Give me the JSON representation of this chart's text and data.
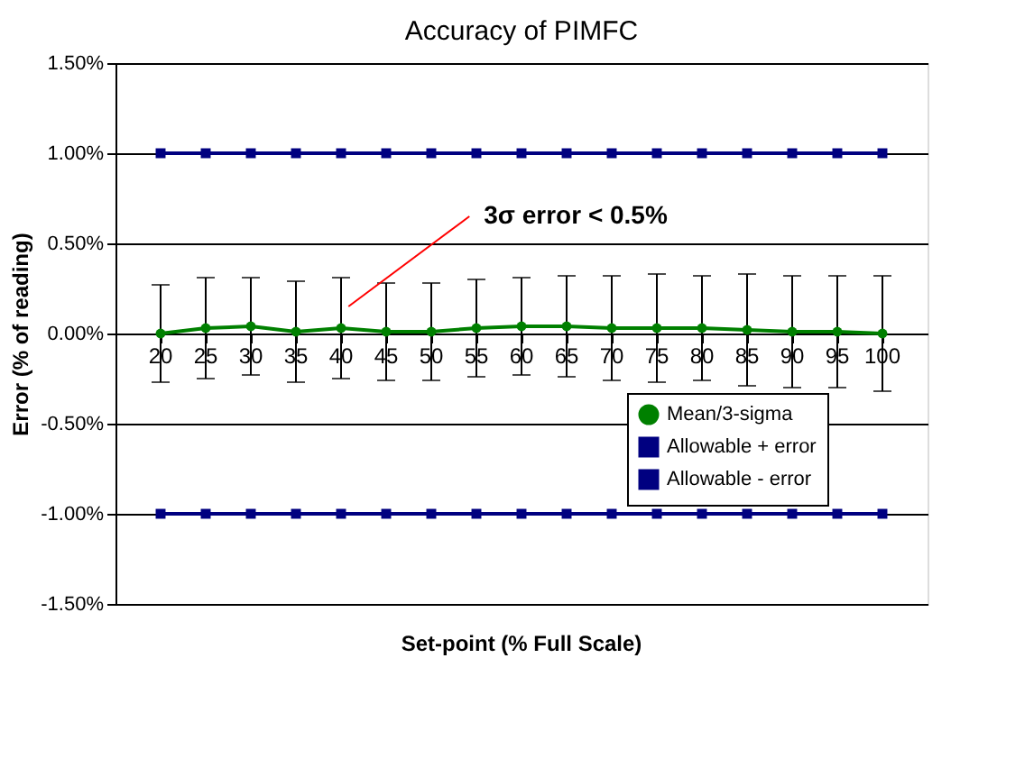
{
  "chart_data": {
    "type": "line",
    "title": "Accuracy of PIMFC",
    "xlabel": "Set-point (% Full Scale)",
    "ylabel": "Error (% of reading)",
    "categories": [
      "20",
      "25",
      "30",
      "35",
      "40",
      "45",
      "50",
      "55",
      "60",
      "65",
      "70",
      "75",
      "80",
      "85",
      "90",
      "95",
      "100"
    ],
    "series": [
      {
        "name": "Mean/3-sigma",
        "color": "#008000",
        "marker": "circle",
        "values": [
          0.0,
          0.03,
          0.04,
          0.01,
          0.03,
          0.01,
          0.01,
          0.03,
          0.04,
          0.04,
          0.03,
          0.03,
          0.03,
          0.02,
          0.01,
          0.01,
          0.0
        ],
        "errors": [
          0.27,
          0.28,
          0.27,
          0.28,
          0.28,
          0.27,
          0.27,
          0.27,
          0.27,
          0.28,
          0.29,
          0.3,
          0.29,
          0.31,
          0.31,
          0.31,
          0.32
        ]
      },
      {
        "name": "Allowable + error",
        "color": "#000080",
        "marker": "square",
        "values": [
          1,
          1,
          1,
          1,
          1,
          1,
          1,
          1,
          1,
          1,
          1,
          1,
          1,
          1,
          1,
          1,
          1
        ]
      },
      {
        "name": "Allowable - error",
        "color": "#000080",
        "marker": "square",
        "values": [
          -1,
          -1,
          -1,
          -1,
          -1,
          -1,
          -1,
          -1,
          -1,
          -1,
          -1,
          -1,
          -1,
          -1,
          -1,
          -1,
          -1
        ]
      }
    ],
    "ylim": [
      -1.5,
      1.5
    ],
    "yticks": [
      {
        "value": -1.5,
        "label": "-1.50%"
      },
      {
        "value": -1.0,
        "label": "-1.00%"
      },
      {
        "value": -0.5,
        "label": "-0.50%"
      },
      {
        "value": 0,
        "label": "0.00%"
      },
      {
        "value": 0.5,
        "label": "0.50%"
      },
      {
        "value": 1.0,
        "label": "1.00%"
      },
      {
        "value": 1.5,
        "label": "1.50%"
      }
    ],
    "grid": "y",
    "legend": "bottom right",
    "annotations": [
      {
        "text": "3σ error < 0.5%",
        "x": "40",
        "y": 0.15
      }
    ]
  }
}
